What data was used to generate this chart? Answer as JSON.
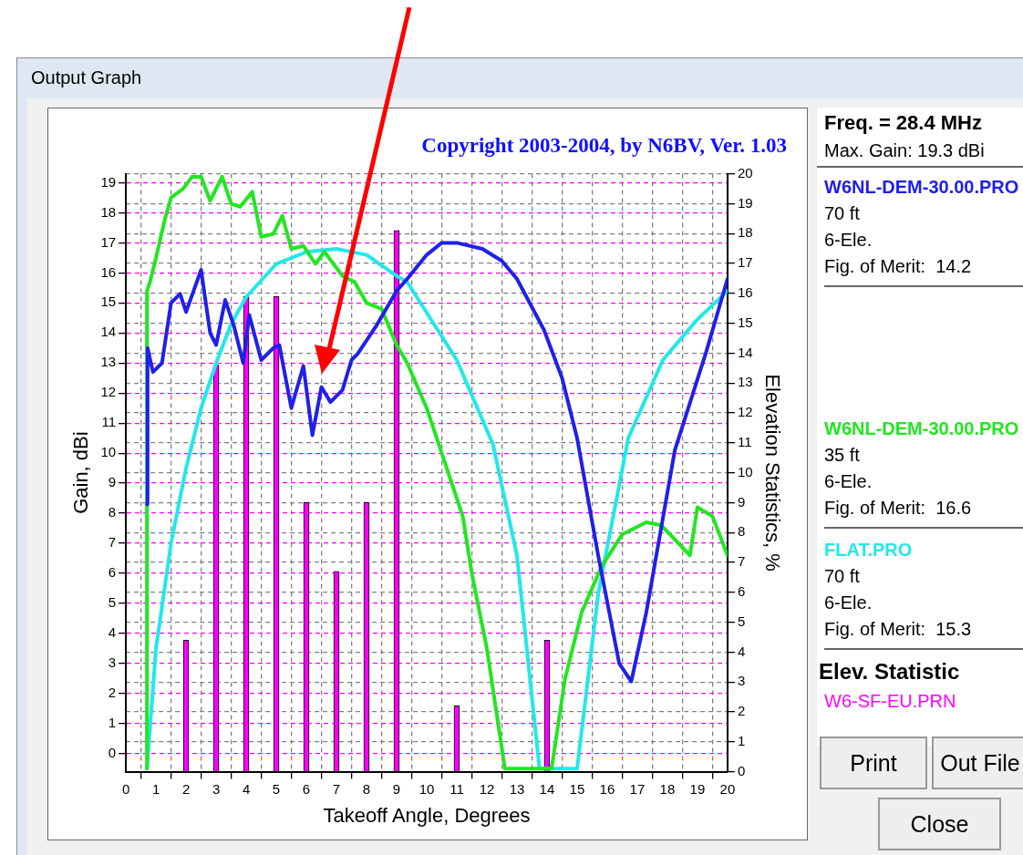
{
  "chart_data": {
    "type": "line",
    "title": "Copyright 2003-2004, by N6BV, Ver. 1.03",
    "xlabel": "Takeoff Angle, Degrees",
    "ylabel": "Gain, dBi",
    "y2label": "Elevation Statistics, %",
    "xlim": [
      0,
      20
    ],
    "xticks": [
      0,
      1,
      2,
      3,
      4,
      5,
      6,
      7,
      8,
      9,
      10,
      11,
      12,
      13,
      14,
      15,
      16,
      17,
      18,
      19,
      20
    ],
    "ylim": [
      -0.6,
      19.3
    ],
    "yticks": [
      0,
      1,
      2,
      3,
      4,
      5,
      6,
      7,
      8,
      9,
      10,
      11,
      12,
      13,
      14,
      15,
      16,
      17,
      18,
      19
    ],
    "y2lim": [
      0,
      20
    ],
    "y2ticks": [
      0,
      1,
      2,
      3,
      4,
      5,
      6,
      7,
      8,
      9,
      10,
      11,
      12,
      13,
      14,
      15,
      16,
      17,
      18,
      19,
      20
    ],
    "grid": true,
    "legend": "right",
    "marker": "none",
    "line_style": "solid",
    "annotations": [
      "Output Graph",
      "Freq. = 28.4 MHz",
      "Max. Gain: 19.3 dBi",
      "70 ft",
      "6-Ele.",
      "Fig. of Merit:  14.2",
      "35 ft",
      "6-Ele.",
      "Fig. of Merit:  16.6",
      "70 ft",
      "6-Ele.",
      "Fig. of Merit:  15.3",
      "Elev. Statistic",
      "Print",
      "Out File",
      "Close"
    ],
    "series": [
      {
        "name": "W6NL-DEM-30.00.PRO",
        "color": "#2020e8",
        "x": [
          0.7,
          0.72,
          0.9,
          1.2,
          1.5,
          1.8,
          2.0,
          2.5,
          2.8,
          3.0,
          3.3,
          3.6,
          3.9,
          4.1,
          4.5,
          4.9,
          5.1,
          5.5,
          5.9,
          6.2,
          6.5,
          6.8,
          7.2,
          7.5,
          7.7,
          8.3,
          9.0,
          9.35,
          10.0,
          10.5,
          11.0,
          11.85,
          12.5,
          13.0,
          13.9,
          14.5,
          15.0,
          15.7,
          16.4,
          16.8,
          17.3,
          18.25,
          19.3,
          20
        ],
        "values": [
          8.3,
          13.5,
          12.7,
          13.0,
          15.0,
          15.3,
          14.7,
          16.1,
          14.0,
          13.6,
          15.1,
          14.2,
          13.0,
          14.6,
          13.1,
          13.5,
          13.6,
          11.5,
          12.9,
          10.6,
          12.2,
          11.7,
          12.1,
          13.1,
          13.3,
          14.2,
          15.4,
          15.8,
          16.6,
          17.0,
          17.0,
          16.8,
          16.4,
          15.8,
          14.1,
          12.5,
          10.5,
          6.6,
          3.0,
          2.4,
          4.7,
          10.1,
          13.4,
          15.8
        ]
      },
      {
        "name": "W6NL-DEM-30.00.PRO",
        "color": "#22e622",
        "x": [
          0.7,
          0.7,
          0.8,
          1.0,
          1.3,
          1.5,
          1.9,
          2.2,
          2.5,
          2.8,
          3.2,
          3.5,
          3.8,
          4.2,
          4.5,
          4.9,
          5.2,
          5.5,
          5.9,
          6.3,
          6.6,
          7.2,
          7.6,
          8.0,
          8.5,
          9.0,
          9.35,
          10.0,
          10.5,
          11.2,
          11.5,
          12.0,
          12.6,
          14.15,
          14.6,
          15.15,
          15.8,
          16.5,
          17.3,
          17.8,
          18.75,
          19.0,
          19.5,
          20
        ],
        "values": [
          -0.5,
          15.4,
          15.7,
          16.5,
          17.8,
          18.5,
          18.8,
          19.2,
          19.2,
          18.4,
          19.2,
          18.3,
          18.2,
          18.7,
          17.2,
          17.3,
          17.9,
          16.8,
          16.9,
          16.3,
          16.7,
          15.9,
          15.7,
          15.0,
          14.8,
          13.6,
          13.0,
          11.5,
          10.0,
          7.9,
          6.0,
          3.5,
          -0.5,
          -0.5,
          2.5,
          4.7,
          6.2,
          7.3,
          7.7,
          7.6,
          6.6,
          8.2,
          7.9,
          6.6
        ]
      },
      {
        "name": "FLAT.PRO",
        "color": "#22e8e8",
        "x": [
          0.7,
          1.0,
          1.5,
          2.0,
          2.5,
          3.0,
          3.5,
          4.0,
          5.0,
          6.0,
          7.0,
          8.0,
          9.0,
          9.35,
          11.0,
          12.2,
          13.0,
          13.75,
          15.0,
          15.7,
          16.7,
          17.85,
          18.95,
          20
        ],
        "values": [
          -0.5,
          3.5,
          7.0,
          9.5,
          11.5,
          13.0,
          14.3,
          15.2,
          16.3,
          16.7,
          16.8,
          16.6,
          15.9,
          15.7,
          13.1,
          10.3,
          6.6,
          -0.5,
          -0.5,
          5.3,
          10.5,
          13.1,
          14.4,
          15.4
        ]
      },
      {
        "name": "W6-SF-EU.PRN",
        "type": "bar",
        "axis": "y2",
        "color": "#ff00ff",
        "x": [
          2,
          3,
          4,
          5,
          6,
          7,
          8,
          9,
          11,
          14
        ],
        "values": [
          4.4,
          13.6,
          15.9,
          15.9,
          9.0,
          6.7,
          9.0,
          18.1,
          2.2,
          4.4
        ]
      }
    ]
  }
}
